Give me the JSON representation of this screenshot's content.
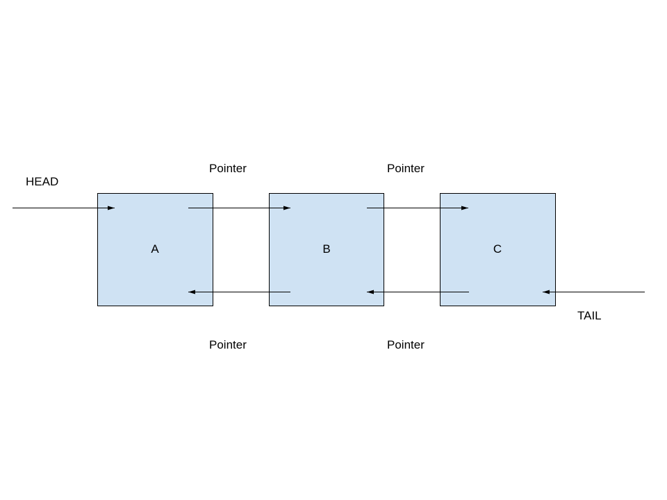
{
  "diagram": {
    "node_fill": "#cfe2f3",
    "stroke_color": "#000000",
    "nodes": [
      {
        "label": "A"
      },
      {
        "label": "B"
      },
      {
        "label": "C"
      }
    ],
    "head_label": "HEAD",
    "tail_label": "TAIL",
    "next_pointer_labels": [
      "Pointer",
      "Pointer"
    ],
    "prev_pointer_labels": [
      "Pointer",
      "Pointer"
    ]
  }
}
